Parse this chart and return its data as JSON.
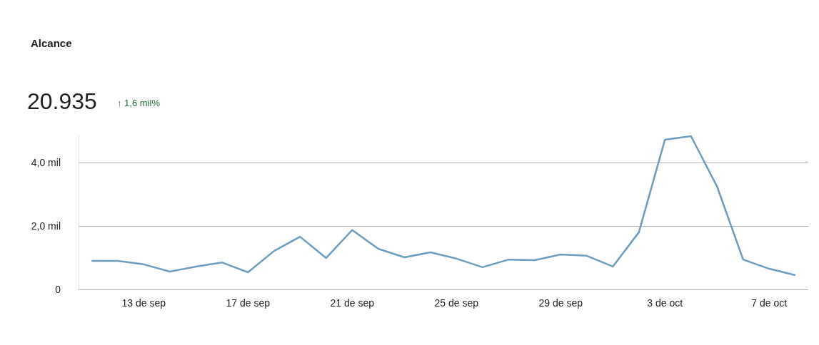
{
  "chart_data": {
    "type": "line",
    "title": "Alcance",
    "annotations": [
      "20.935",
      "↑ 1,6 mil%"
    ],
    "categories": [
      null,
      null,
      "13 de sep",
      null,
      null,
      null,
      "17 de sep",
      null,
      null,
      null,
      "21 de sep",
      null,
      null,
      null,
      "25 de sep",
      null,
      null,
      null,
      "29 de sep",
      null,
      null,
      null,
      "3 de oct",
      null,
      null,
      null,
      "7 de oct",
      null
    ],
    "series": [
      {
        "color": "#6b9dc0",
        "values": [
          0.9,
          0.9,
          0.79,
          0.56,
          0.72,
          0.85,
          0.54,
          1.21,
          1.66,
          0.99,
          1.87,
          1.28,
          1.01,
          1.17,
          0.97,
          0.7,
          0.94,
          0.92,
          1.1,
          1.06,
          0.72,
          1.8,
          4.72,
          4.83,
          3.24,
          0.94,
          0.65,
          0.45
        ]
      }
    ],
    "ylim": [
      0,
      4.83
    ],
    "yticks": [
      {
        "value": 0,
        "label": "0"
      },
      {
        "value": 2,
        "label": "2,0 mil"
      },
      {
        "value": 4,
        "label": "4,0 mil"
      }
    ],
    "grid": "y",
    "marker": "none",
    "line_style": "solid"
  }
}
